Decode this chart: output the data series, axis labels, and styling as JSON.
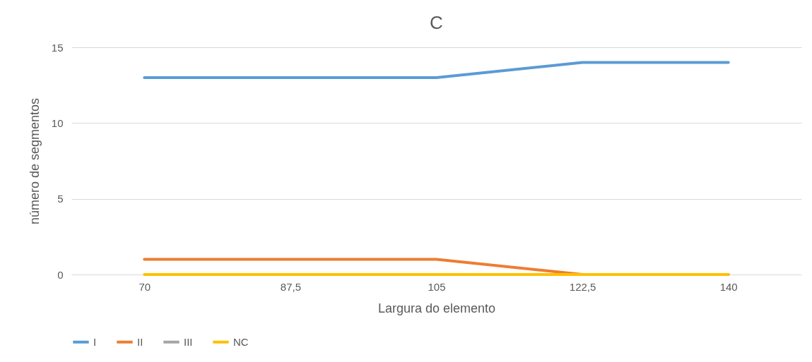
{
  "chart_data": {
    "type": "line",
    "title": "C",
    "xlabel": "Largura do elemento",
    "ylabel": "número de segmentos",
    "categories": [
      "70",
      "87,5",
      "105",
      "122,5",
      "140"
    ],
    "series": [
      {
        "name": "I",
        "color": "#5b9bd5",
        "values": [
          13,
          13,
          13,
          14,
          14
        ]
      },
      {
        "name": "II",
        "color": "#ed7d31",
        "values": [
          1,
          1,
          1,
          0,
          0
        ]
      },
      {
        "name": "III",
        "color": "#a5a5a5",
        "values": [
          null,
          null,
          null,
          null,
          null
        ]
      },
      {
        "name": "NC",
        "color": "#ffc000",
        "values": [
          0,
          0,
          0,
          0,
          0
        ]
      }
    ],
    "ylim": [
      0,
      15
    ],
    "yticks": [
      0,
      5,
      10,
      15
    ],
    "grid": "y",
    "legend": "bottom",
    "marker": "none",
    "line_style": "solid"
  }
}
